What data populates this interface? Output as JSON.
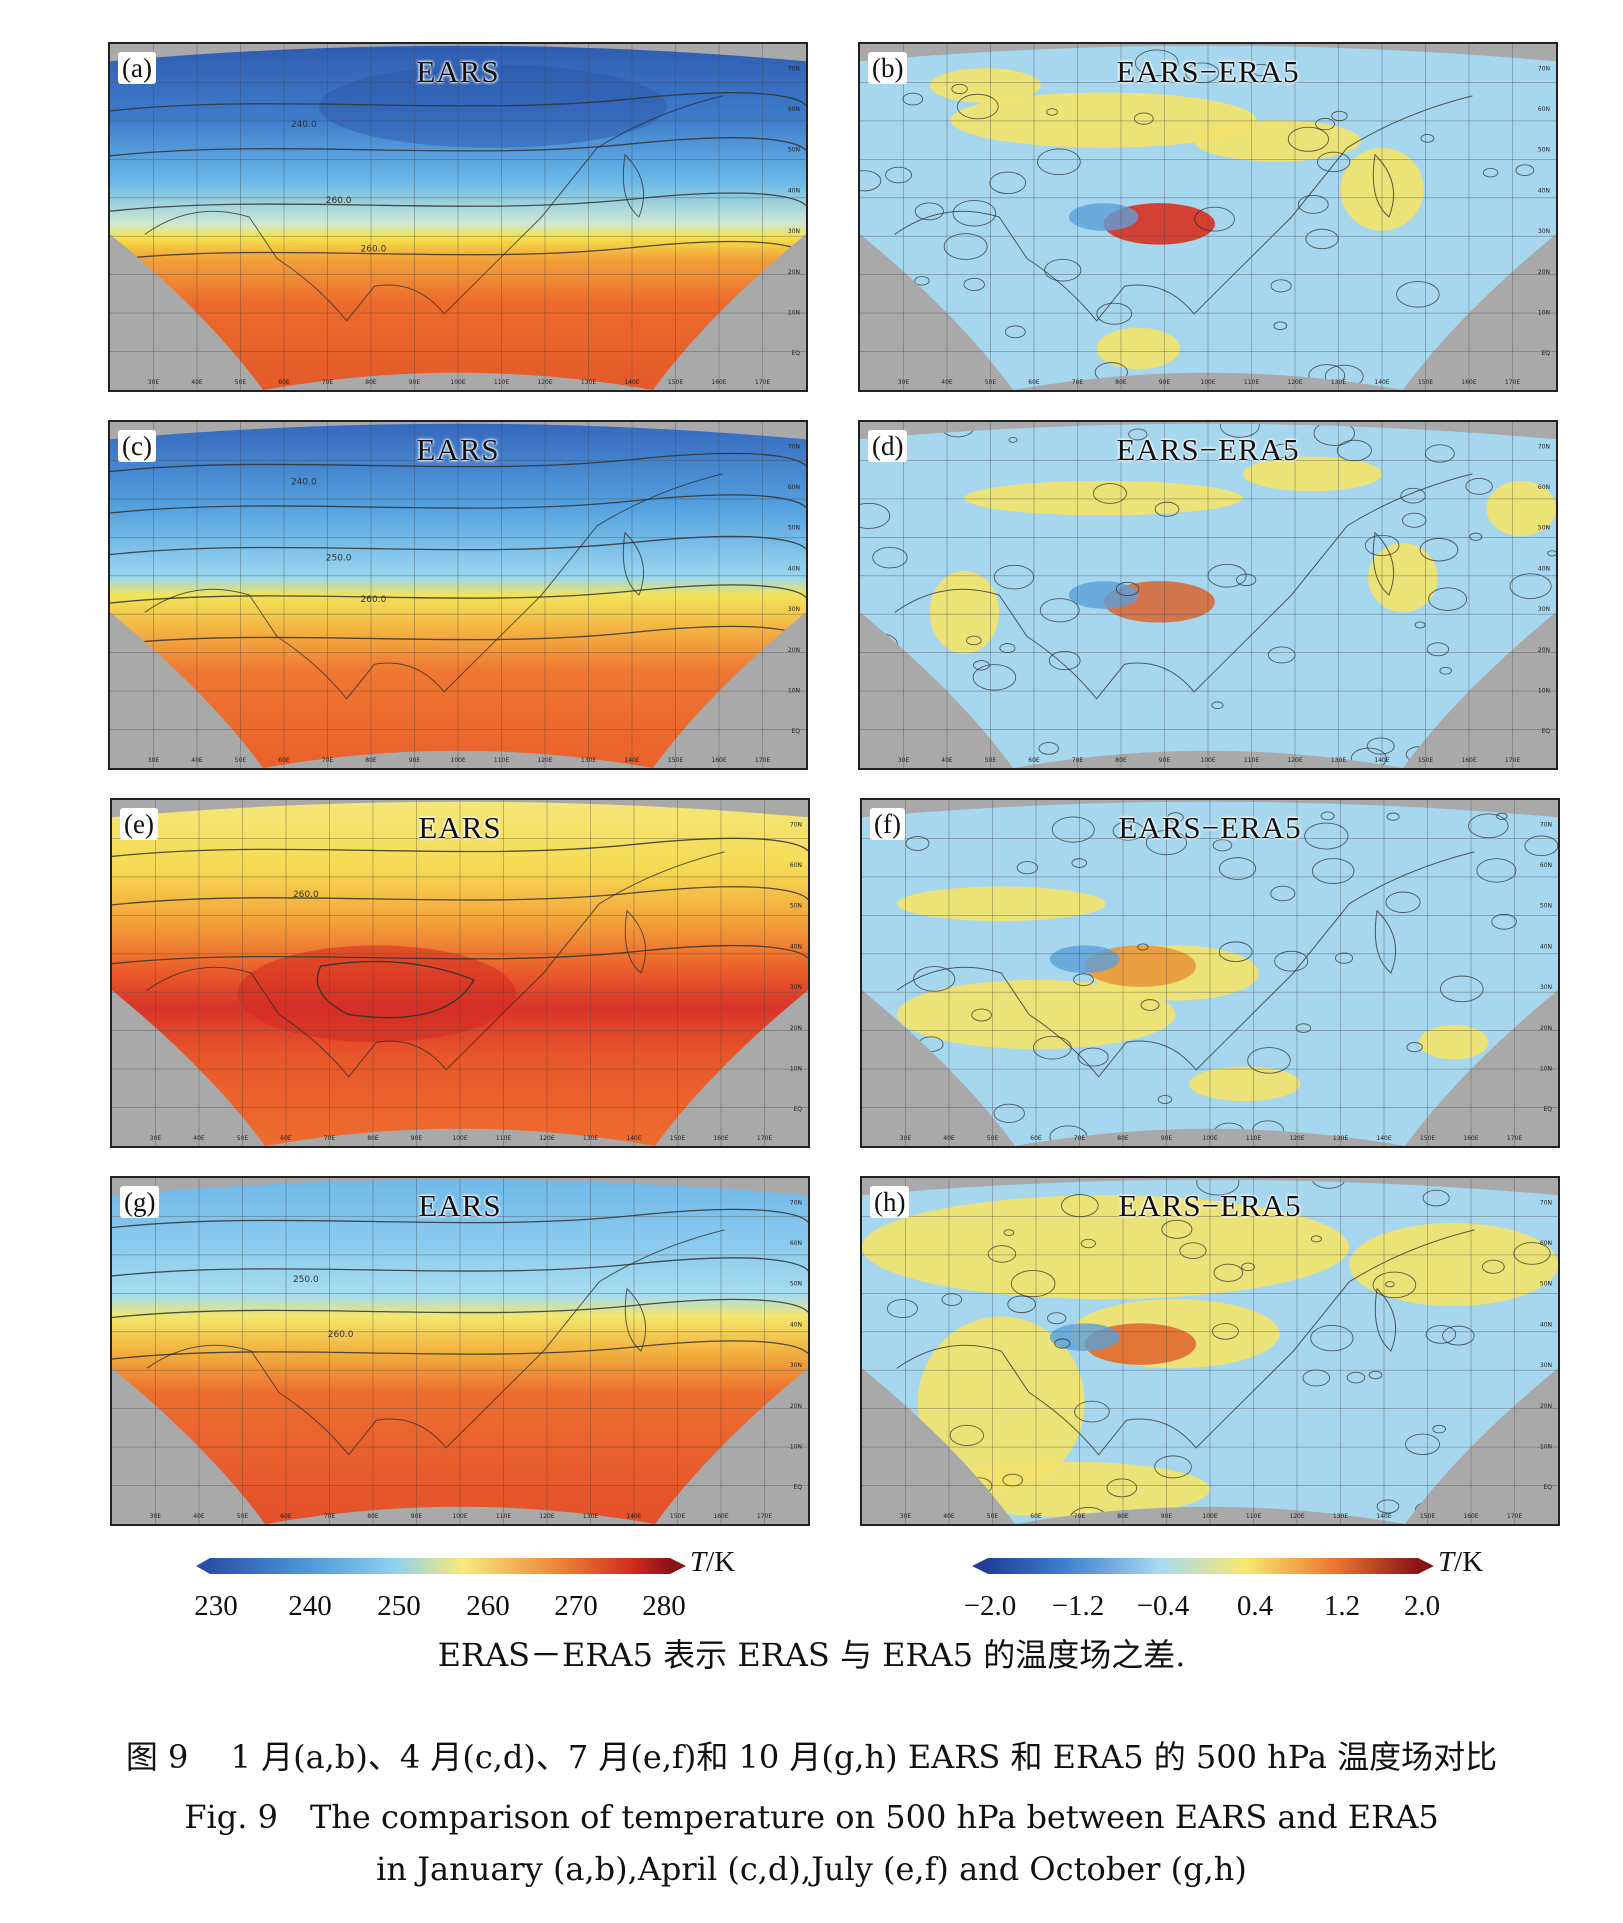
{
  "panels": [
    {
      "id": "a",
      "label": "(a)",
      "title": "EARS",
      "kind": "temp",
      "month": "January"
    },
    {
      "id": "b",
      "label": "(b)",
      "title": "EARS−ERA5",
      "kind": "diff",
      "month": "January"
    },
    {
      "id": "c",
      "label": "(c)",
      "title": "EARS",
      "kind": "temp",
      "month": "April"
    },
    {
      "id": "d",
      "label": "(d)",
      "title": "EARS−ERA5",
      "kind": "diff",
      "month": "April"
    },
    {
      "id": "e",
      "label": "(e)",
      "title": "EARS",
      "kind": "temp",
      "month": "July"
    },
    {
      "id": "f",
      "label": "(f)",
      "title": "EARS−ERA5",
      "kind": "diff",
      "month": "July"
    },
    {
      "id": "g",
      "label": "(g)",
      "title": "EARS",
      "kind": "temp",
      "month": "October"
    },
    {
      "id": "h",
      "label": "(h)",
      "title": "EARS−ERA5",
      "kind": "diff",
      "month": "October"
    }
  ],
  "contour_labels": {
    "a": [
      "240.0",
      "260.0",
      "260.0"
    ],
    "c": [
      "240.0",
      "250.0",
      "260.0"
    ],
    "e": [
      "260.0"
    ],
    "g": [
      "250.0",
      "260.0"
    ]
  },
  "lon_labels": [
    "30E",
    "40E",
    "50E",
    "60E",
    "70E",
    "80E",
    "90E",
    "100E",
    "110E",
    "120E",
    "130E",
    "140E",
    "150E",
    "160E",
    "170E"
  ],
  "lat_labels": [
    "70N",
    "60N",
    "50N",
    "40N",
    "30N",
    "20N",
    "10N",
    "EQ"
  ],
  "colorbars": {
    "temperature": {
      "ticks": [
        "230",
        "240",
        "250",
        "260",
        "270",
        "280"
      ],
      "unit_var": "T",
      "unit": "/K",
      "min": 230,
      "max": 280
    },
    "difference": {
      "ticks": [
        "−2.0",
        "−1.2",
        "−0.4",
        "0.4",
        "1.2",
        "2.0"
      ],
      "unit_var": "T",
      "unit": "/K",
      "min": -2.0,
      "max": 2.0
    }
  },
  "colors": {
    "land_mask": "#a9a9a9",
    "cold": "#2a5db3",
    "mid_blue": "#6cc0ea",
    "yellow": "#f3e34a",
    "warm": "#e85b2b",
    "hot": "#c2201c"
  },
  "note": "ERAS－ERA5 表示 ERAS 与 ERA5 的温度场之差.",
  "caption_cn": "图 9　 1 月(a,b)、4 月(c,d)、7 月(e,f)和 10 月(g,h) EARS 和 ERA5 的 500 hPa 温度场对比",
  "caption_en_1": "Fig. 9　The comparison of temperature on 500 hPa between EARS and ERA5",
  "caption_en_2": "in January (a,b),April (c,d),July (e,f) and October (g,h)"
}
